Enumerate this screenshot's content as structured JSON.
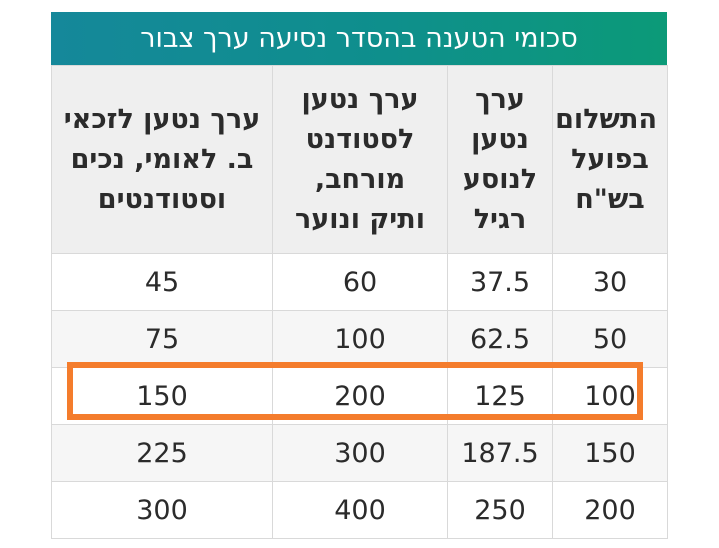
{
  "title": "סכומי הטענה בהסדר נסיעה ערך צבור",
  "headers": [
    "התשלום בפועל בש\"ח",
    "ערך נטען לנוסע רגיל",
    "ערך נטען לסטודנט מורחב, ותיק ונוער",
    "ערך נטען לזכאי ב. לאומי, נכים וסטודנטים"
  ],
  "rows": [
    [
      "30",
      "37.5",
      "60",
      "45"
    ],
    [
      "50",
      "62.5",
      "100",
      "75"
    ],
    [
      "100",
      "125",
      "200",
      "150"
    ],
    [
      "150",
      "187.5",
      "300",
      "225"
    ],
    [
      "200",
      "250",
      "400",
      "300"
    ]
  ],
  "colors": {
    "title_bar_start": "#15889a",
    "title_bar_end": "#0c9a78",
    "highlight_border": "#f47c2c",
    "header_bg": "#efefef"
  }
}
